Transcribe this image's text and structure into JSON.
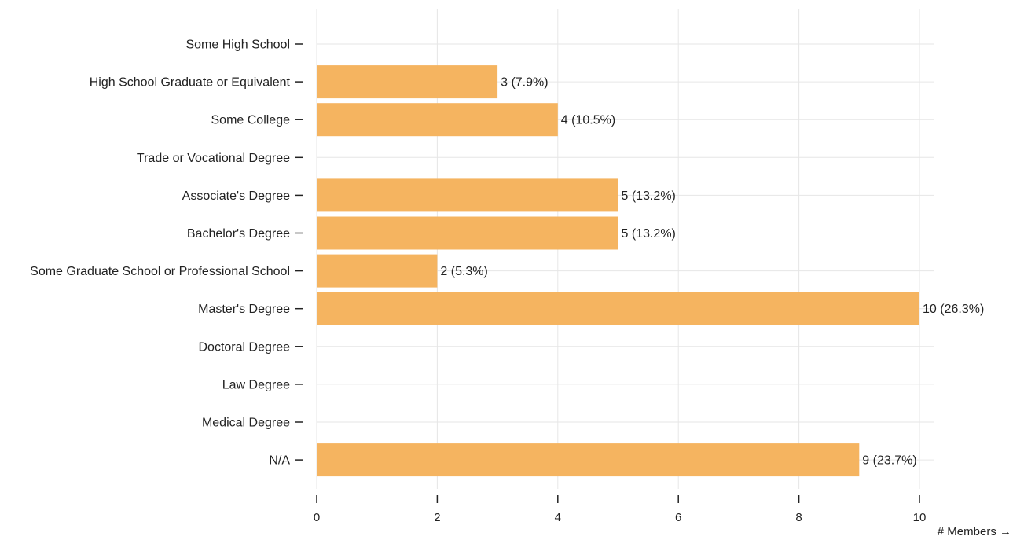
{
  "chart_data": {
    "type": "bar",
    "orientation": "horizontal",
    "categories": [
      "Some High School",
      "High School Graduate or Equivalent",
      "Some College",
      "Trade or Vocational Degree",
      "Associate's Degree",
      "Bachelor's Degree",
      "Some Graduate School or Professional School",
      "Master's Degree",
      "Doctoral Degree",
      "Law Degree",
      "Medical Degree",
      "N/A"
    ],
    "values": [
      0,
      3,
      4,
      0,
      5,
      5,
      2,
      10,
      0,
      0,
      0,
      9
    ],
    "value_labels": [
      "",
      "3 (7.9%)",
      "4 (10.5%)",
      "",
      "5 (13.2%)",
      "5 (13.2%)",
      "2 (5.3%)",
      "10 (26.3%)",
      "",
      "",
      "",
      "9 (23.7%)"
    ],
    "xlabel": "# Members →",
    "ylabel": "",
    "xlim": [
      0,
      10
    ],
    "xticks": [
      0,
      2,
      4,
      6,
      8,
      10
    ],
    "grid": true,
    "bar_color": "#f5b460"
  }
}
